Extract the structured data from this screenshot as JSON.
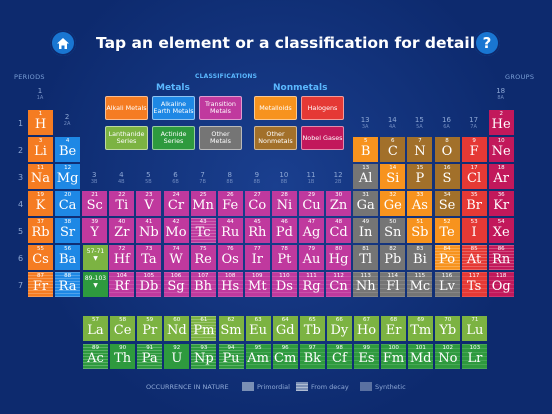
{
  "header": {
    "home_icon": "home-icon",
    "help_icon": "?",
    "title": "Tap an element or a classification for details."
  },
  "labels": {
    "periods": "PERIODS",
    "groups": "GROUPS",
    "classifications": "CLASSIFICATIONS",
    "metals": "Metals",
    "nonmetals": "Nonmetals"
  },
  "colors": {
    "alkali": "#f57c22",
    "alkaline": "#1e88e5",
    "transition": "#c0399e",
    "lanthanide": "#7cb342",
    "actinide": "#2e9a3e",
    "other_metal": "#757575",
    "metalloid": "#f7931e",
    "halogen": "#e53935",
    "other_nonmetal": "#a2702a",
    "noble": "#c2185b",
    "h": "#f57c22",
    "he": "#c2185b"
  },
  "classifications": [
    {
      "label": "Alkali Metals",
      "key": "alkali"
    },
    {
      "label": "Alkaline Earth Metals",
      "key": "alkaline"
    },
    {
      "label": "Transition Metals",
      "key": "transition"
    },
    {
      "label": "Lanthanide Series",
      "key": "lanthanide"
    },
    {
      "label": "Actinide Series",
      "key": "actinide"
    },
    {
      "label": "Other Metals",
      "key": "other_metal"
    },
    {
      "label": "Metalloids",
      "key": "metalloid"
    },
    {
      "label": "Halogens",
      "key": "halogen"
    },
    {
      "label": "Other Nonmetals",
      "key": "other_nonmetal"
    },
    {
      "label": "Nobel Gases",
      "key": "noble"
    }
  ],
  "groups": [
    {
      "n": "1",
      "sub": "1A"
    },
    {
      "n": "2",
      "sub": "2A"
    },
    {
      "n": "3",
      "sub": "3B"
    },
    {
      "n": "4",
      "sub": "4B"
    },
    {
      "n": "5",
      "sub": "5B"
    },
    {
      "n": "6",
      "sub": "6B"
    },
    {
      "n": "7",
      "sub": "7B"
    },
    {
      "n": "8",
      "sub": "8B"
    },
    {
      "n": "9",
      "sub": "8B"
    },
    {
      "n": "10",
      "sub": "8B"
    },
    {
      "n": "11",
      "sub": "1B"
    },
    {
      "n": "12",
      "sub": "2B"
    },
    {
      "n": "13",
      "sub": "3A"
    },
    {
      "n": "14",
      "sub": "4A"
    },
    {
      "n": "15",
      "sub": "5A"
    },
    {
      "n": "16",
      "sub": "6A"
    },
    {
      "n": "17",
      "sub": "7A"
    },
    {
      "n": "18",
      "sub": "8A"
    }
  ],
  "periods": [
    "1",
    "2",
    "3",
    "4",
    "5",
    "6",
    "7"
  ],
  "elements": [
    {
      "z": 1,
      "s": "H",
      "c": "h",
      "p": 1,
      "g": 1
    },
    {
      "z": 2,
      "s": "He",
      "c": "he",
      "p": 1,
      "g": 18
    },
    {
      "z": 3,
      "s": "Li",
      "c": "alkali",
      "p": 2,
      "g": 1
    },
    {
      "z": 4,
      "s": "Be",
      "c": "alkaline",
      "p": 2,
      "g": 2
    },
    {
      "z": 5,
      "s": "B",
      "c": "metalloid",
      "p": 2,
      "g": 13
    },
    {
      "z": 6,
      "s": "C",
      "c": "other_nonmetal",
      "p": 2,
      "g": 14
    },
    {
      "z": 7,
      "s": "N",
      "c": "other_nonmetal",
      "p": 2,
      "g": 15
    },
    {
      "z": 8,
      "s": "O",
      "c": "other_nonmetal",
      "p": 2,
      "g": 16
    },
    {
      "z": 9,
      "s": "F",
      "c": "halogen",
      "p": 2,
      "g": 17
    },
    {
      "z": 10,
      "s": "Ne",
      "c": "noble",
      "p": 2,
      "g": 18
    },
    {
      "z": 11,
      "s": "Na",
      "c": "alkali",
      "p": 3,
      "g": 1
    },
    {
      "z": 12,
      "s": "Mg",
      "c": "alkaline",
      "p": 3,
      "g": 2
    },
    {
      "z": 13,
      "s": "Al",
      "c": "other_metal",
      "p": 3,
      "g": 13
    },
    {
      "z": 14,
      "s": "Si",
      "c": "metalloid",
      "p": 3,
      "g": 14
    },
    {
      "z": 15,
      "s": "P",
      "c": "other_nonmetal",
      "p": 3,
      "g": 15
    },
    {
      "z": 16,
      "s": "S",
      "c": "other_nonmetal",
      "p": 3,
      "g": 16
    },
    {
      "z": 17,
      "s": "Cl",
      "c": "halogen",
      "p": 3,
      "g": 17
    },
    {
      "z": 18,
      "s": "Ar",
      "c": "noble",
      "p": 3,
      "g": 18
    },
    {
      "z": 19,
      "s": "K",
      "c": "alkali",
      "p": 4,
      "g": 1
    },
    {
      "z": 20,
      "s": "Ca",
      "c": "alkaline",
      "p": 4,
      "g": 2
    },
    {
      "z": 21,
      "s": "Sc",
      "c": "transition",
      "p": 4,
      "g": 3
    },
    {
      "z": 22,
      "s": "Ti",
      "c": "transition",
      "p": 4,
      "g": 4
    },
    {
      "z": 23,
      "s": "V",
      "c": "transition",
      "p": 4,
      "g": 5
    },
    {
      "z": 24,
      "s": "Cr",
      "c": "transition",
      "p": 4,
      "g": 6
    },
    {
      "z": 25,
      "s": "Mn",
      "c": "transition",
      "p": 4,
      "g": 7
    },
    {
      "z": 26,
      "s": "Fe",
      "c": "transition",
      "p": 4,
      "g": 8
    },
    {
      "z": 27,
      "s": "Co",
      "c": "transition",
      "p": 4,
      "g": 9
    },
    {
      "z": 28,
      "s": "Ni",
      "c": "transition",
      "p": 4,
      "g": 10
    },
    {
      "z": 29,
      "s": "Cu",
      "c": "transition",
      "p": 4,
      "g": 11
    },
    {
      "z": 30,
      "s": "Zn",
      "c": "transition",
      "p": 4,
      "g": 12
    },
    {
      "z": 31,
      "s": "Ga",
      "c": "other_metal",
      "p": 4,
      "g": 13
    },
    {
      "z": 32,
      "s": "Ge",
      "c": "metalloid",
      "p": 4,
      "g": 14
    },
    {
      "z": 33,
      "s": "As",
      "c": "metalloid",
      "p": 4,
      "g": 15
    },
    {
      "z": 34,
      "s": "Se",
      "c": "other_nonmetal",
      "p": 4,
      "g": 16
    },
    {
      "z": 35,
      "s": "Br",
      "c": "halogen",
      "p": 4,
      "g": 17
    },
    {
      "z": 36,
      "s": "Kr",
      "c": "noble",
      "p": 4,
      "g": 18
    },
    {
      "z": 37,
      "s": "Rb",
      "c": "alkali",
      "p": 5,
      "g": 1
    },
    {
      "z": 38,
      "s": "Sr",
      "c": "alkaline",
      "p": 5,
      "g": 2
    },
    {
      "z": 39,
      "s": "Y",
      "c": "transition",
      "p": 5,
      "g": 3
    },
    {
      "z": 40,
      "s": "Zr",
      "c": "transition",
      "p": 5,
      "g": 4
    },
    {
      "z": 41,
      "s": "Nb",
      "c": "transition",
      "p": 5,
      "g": 5
    },
    {
      "z": 42,
      "s": "Mo",
      "c": "transition",
      "p": 5,
      "g": 6
    },
    {
      "z": 43,
      "s": "Tc",
      "c": "transition",
      "p": 5,
      "g": 7,
      "o": "decay"
    },
    {
      "z": 44,
      "s": "Ru",
      "c": "transition",
      "p": 5,
      "g": 8
    },
    {
      "z": 45,
      "s": "Rh",
      "c": "transition",
      "p": 5,
      "g": 9
    },
    {
      "z": 46,
      "s": "Pd",
      "c": "transition",
      "p": 5,
      "g": 10
    },
    {
      "z": 47,
      "s": "Ag",
      "c": "transition",
      "p": 5,
      "g": 11
    },
    {
      "z": 48,
      "s": "Cd",
      "c": "transition",
      "p": 5,
      "g": 12
    },
    {
      "z": 49,
      "s": "In",
      "c": "other_metal",
      "p": 5,
      "g": 13
    },
    {
      "z": 50,
      "s": "Sn",
      "c": "other_metal",
      "p": 5,
      "g": 14
    },
    {
      "z": 51,
      "s": "Sb",
      "c": "metalloid",
      "p": 5,
      "g": 15
    },
    {
      "z": 52,
      "s": "Te",
      "c": "metalloid",
      "p": 5,
      "g": 16
    },
    {
      "z": 53,
      "s": "I",
      "c": "halogen",
      "p": 5,
      "g": 17
    },
    {
      "z": 54,
      "s": "Xe",
      "c": "noble",
      "p": 5,
      "g": 18
    },
    {
      "z": 55,
      "s": "Cs",
      "c": "alkali",
      "p": 6,
      "g": 1
    },
    {
      "z": 56,
      "s": "Ba",
      "c": "alkaline",
      "p": 6,
      "g": 2
    },
    {
      "z": 72,
      "s": "Hf",
      "c": "transition",
      "p": 6,
      "g": 4
    },
    {
      "z": 73,
      "s": "Ta",
      "c": "transition",
      "p": 6,
      "g": 5
    },
    {
      "z": 74,
      "s": "W",
      "c": "transition",
      "p": 6,
      "g": 6
    },
    {
      "z": 75,
      "s": "Re",
      "c": "transition",
      "p": 6,
      "g": 7
    },
    {
      "z": 76,
      "s": "Os",
      "c": "transition",
      "p": 6,
      "g": 8
    },
    {
      "z": 77,
      "s": "Ir",
      "c": "transition",
      "p": 6,
      "g": 9
    },
    {
      "z": 78,
      "s": "Pt",
      "c": "transition",
      "p": 6,
      "g": 10
    },
    {
      "z": 79,
      "s": "Au",
      "c": "transition",
      "p": 6,
      "g": 11
    },
    {
      "z": 80,
      "s": "Hg",
      "c": "transition",
      "p": 6,
      "g": 12
    },
    {
      "z": 81,
      "s": "Tl",
      "c": "other_metal",
      "p": 6,
      "g": 13
    },
    {
      "z": 82,
      "s": "Pb",
      "c": "other_metal",
      "p": 6,
      "g": 14
    },
    {
      "z": 83,
      "s": "Bi",
      "c": "other_metal",
      "p": 6,
      "g": 15
    },
    {
      "z": 84,
      "s": "Po",
      "c": "metalloid",
      "p": 6,
      "g": 16,
      "o": "decay"
    },
    {
      "z": 85,
      "s": "At",
      "c": "halogen",
      "p": 6,
      "g": 17,
      "o": "decay"
    },
    {
      "z": 86,
      "s": "Rn",
      "c": "noble",
      "p": 6,
      "g": 18,
      "o": "decay"
    },
    {
      "z": 87,
      "s": "Fr",
      "c": "alkali",
      "p": 7,
      "g": 1,
      "o": "decay"
    },
    {
      "z": 88,
      "s": "Ra",
      "c": "alkaline",
      "p": 7,
      "g": 2,
      "o": "decay"
    },
    {
      "z": 104,
      "s": "Rf",
      "c": "transition",
      "p": 7,
      "g": 4,
      "o": "synth"
    },
    {
      "z": 105,
      "s": "Db",
      "c": "transition",
      "p": 7,
      "g": 5,
      "o": "synth"
    },
    {
      "z": 106,
      "s": "Sg",
      "c": "transition",
      "p": 7,
      "g": 6,
      "o": "synth"
    },
    {
      "z": 107,
      "s": "Bh",
      "c": "transition",
      "p": 7,
      "g": 7,
      "o": "synth"
    },
    {
      "z": 108,
      "s": "Hs",
      "c": "transition",
      "p": 7,
      "g": 8,
      "o": "synth"
    },
    {
      "z": 109,
      "s": "Mt",
      "c": "transition",
      "p": 7,
      "g": 9,
      "o": "synth"
    },
    {
      "z": 110,
      "s": "Ds",
      "c": "transition",
      "p": 7,
      "g": 10,
      "o": "synth"
    },
    {
      "z": 111,
      "s": "Rg",
      "c": "transition",
      "p": 7,
      "g": 11,
      "o": "synth"
    },
    {
      "z": 112,
      "s": "Cn",
      "c": "transition",
      "p": 7,
      "g": 12,
      "o": "synth"
    },
    {
      "z": 113,
      "s": "Nh",
      "c": "other_metal",
      "p": 7,
      "g": 13,
      "o": "synth"
    },
    {
      "z": 114,
      "s": "Fl",
      "c": "other_metal",
      "p": 7,
      "g": 14,
      "o": "synth"
    },
    {
      "z": 115,
      "s": "Mc",
      "c": "other_metal",
      "p": 7,
      "g": 15,
      "o": "synth"
    },
    {
      "z": 116,
      "s": "Lv",
      "c": "other_metal",
      "p": 7,
      "g": 16,
      "o": "synth"
    },
    {
      "z": 117,
      "s": "Ts",
      "c": "halogen",
      "p": 7,
      "g": 17,
      "o": "synth"
    },
    {
      "z": 118,
      "s": "Og",
      "c": "noble",
      "p": 7,
      "g": 18,
      "o": "synth"
    }
  ],
  "lanthanides": [
    {
      "z": 57,
      "s": "La"
    },
    {
      "z": 58,
      "s": "Ce"
    },
    {
      "z": 59,
      "s": "Pr"
    },
    {
      "z": 60,
      "s": "Nd"
    },
    {
      "z": 61,
      "s": "Pm",
      "o": "decay"
    },
    {
      "z": 62,
      "s": "Sm"
    },
    {
      "z": 63,
      "s": "Eu"
    },
    {
      "z": 64,
      "s": "Gd"
    },
    {
      "z": 65,
      "s": "Tb"
    },
    {
      "z": 66,
      "s": "Dy"
    },
    {
      "z": 67,
      "s": "Ho"
    },
    {
      "z": 68,
      "s": "Er"
    },
    {
      "z": 69,
      "s": "Tm"
    },
    {
      "z": 70,
      "s": "Yb"
    },
    {
      "z": 71,
      "s": "Lu"
    }
  ],
  "actinides": [
    {
      "z": 89,
      "s": "Ac",
      "o": "decay"
    },
    {
      "z": 90,
      "s": "Th"
    },
    {
      "z": 91,
      "s": "Pa",
      "o": "decay"
    },
    {
      "z": 92,
      "s": "U"
    },
    {
      "z": 93,
      "s": "Np",
      "o": "decay"
    },
    {
      "z": 94,
      "s": "Pu",
      "o": "decay"
    },
    {
      "z": 95,
      "s": "Am",
      "o": "synth"
    },
    {
      "z": 96,
      "s": "Cm",
      "o": "synth"
    },
    {
      "z": 97,
      "s": "Bk",
      "o": "synth"
    },
    {
      "z": 98,
      "s": "Cf",
      "o": "synth"
    },
    {
      "z": 99,
      "s": "Es",
      "o": "synth"
    },
    {
      "z": 100,
      "s": "Fm",
      "o": "synth"
    },
    {
      "z": 101,
      "s": "Md",
      "o": "synth"
    },
    {
      "z": 102,
      "s": "No",
      "o": "synth"
    },
    {
      "z": 103,
      "s": "Lr",
      "o": "synth"
    }
  ],
  "refs": {
    "lanth": "57-71",
    "act": "89-103"
  },
  "legend": {
    "title": "OCCURRENCE IN NATURE",
    "primordial": "Primordial",
    "decay": "From decay",
    "synthetic": "Synthetic"
  }
}
